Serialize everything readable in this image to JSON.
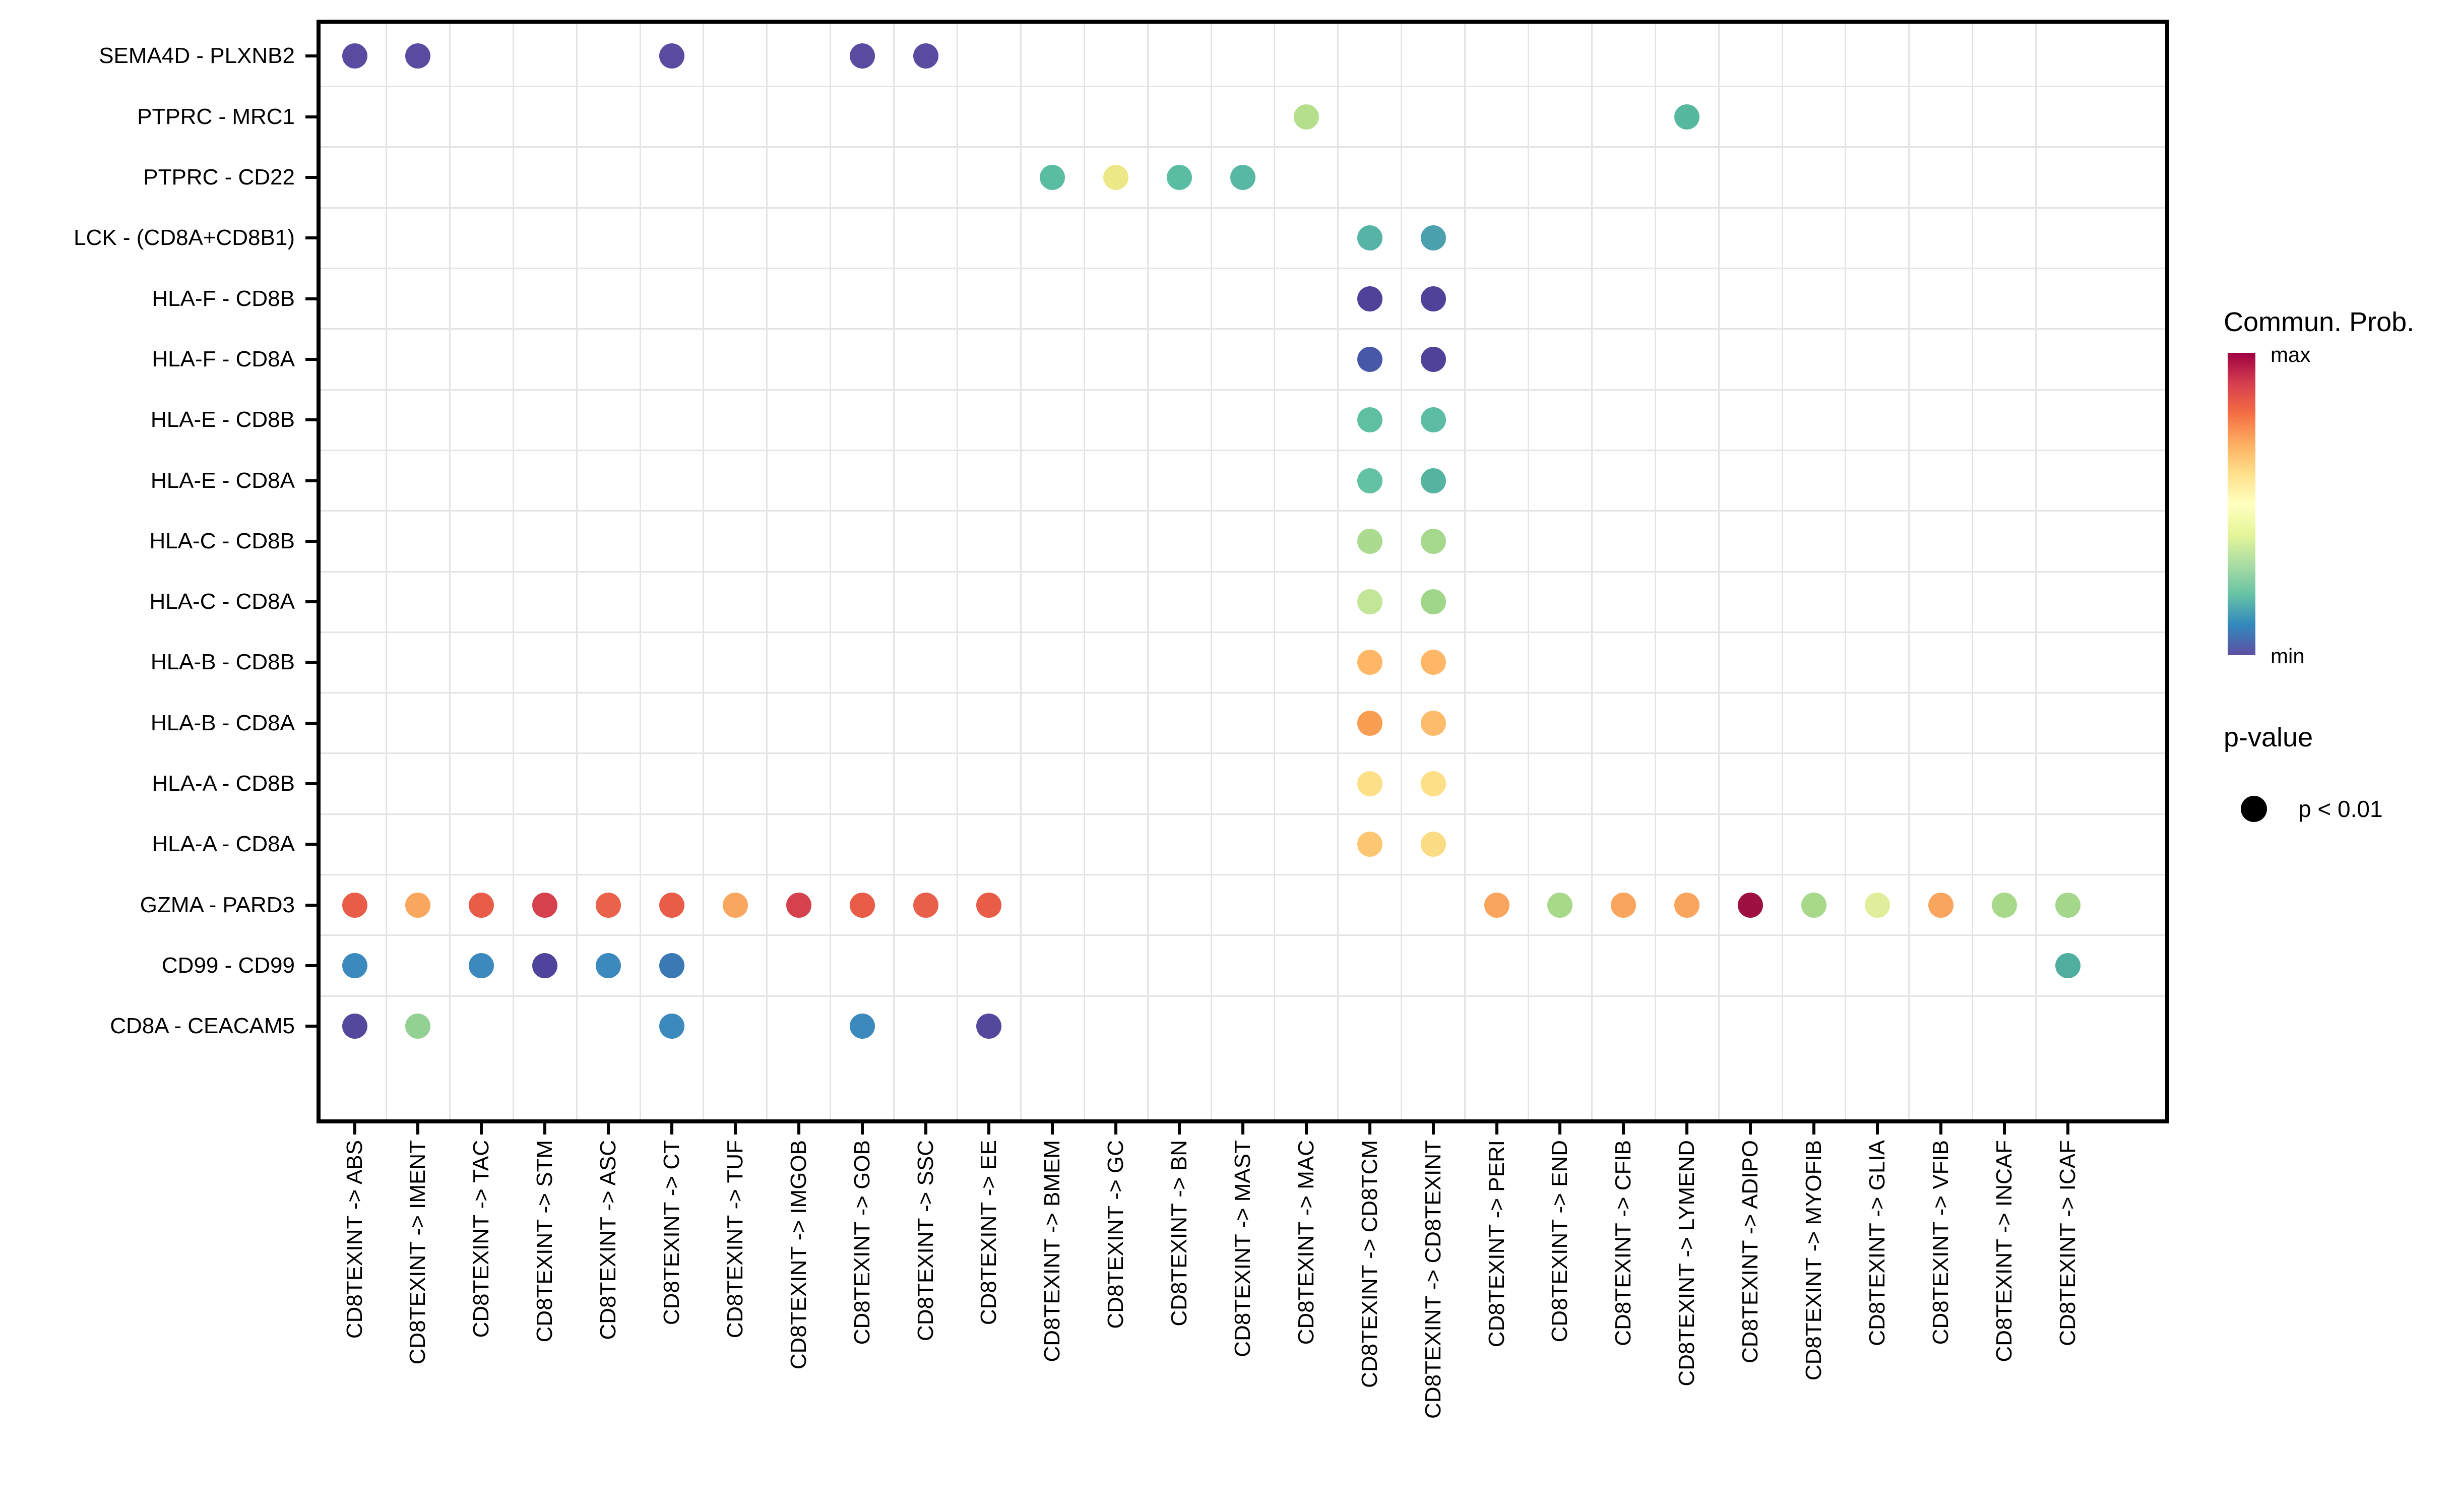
{
  "chart_data": {
    "type": "scatter",
    "description": "Ligand-receptor cell-cell communication dot plot (CellChat style). Dot color encodes communication probability (Spectral palette, min=purple-blue to max=dark red); all dots shown have p < 0.01.",
    "x_categories": [
      "CD8TEXINT -> ABS",
      "CD8TEXINT -> IMENT",
      "CD8TEXINT -> TAC",
      "CD8TEXINT -> STM",
      "CD8TEXINT -> ASC",
      "CD8TEXINT -> CT",
      "CD8TEXINT -> TUF",
      "CD8TEXINT -> IMGOB",
      "CD8TEXINT -> GOB",
      "CD8TEXINT -> SSC",
      "CD8TEXINT -> EE",
      "CD8TEXINT -> BMEM",
      "CD8TEXINT -> GC",
      "CD8TEXINT -> BN",
      "CD8TEXINT -> MAST",
      "CD8TEXINT -> MAC",
      "CD8TEXINT -> CD8TCM",
      "CD8TEXINT -> CD8TEXINT",
      "CD8TEXINT -> PERI",
      "CD8TEXINT -> END",
      "CD8TEXINT -> CFIB",
      "CD8TEXINT -> LYMEND",
      "CD8TEXINT -> ADIPO",
      "CD8TEXINT -> MYOFIB",
      "CD8TEXINT -> GLIA",
      "CD8TEXINT -> VFIB",
      "CD8TEXINT -> INCAF",
      "CD8TEXINT -> ICAF"
    ],
    "y_categories": [
      "SEMA4D - PLXNB2",
      "PTPRC - MRC1",
      "PTPRC - CD22",
      "LCK - (CD8A+CD8B1)",
      "HLA-F - CD8B",
      "HLA-F - CD8A",
      "HLA-E - CD8B",
      "HLA-E - CD8A",
      "HLA-C - CD8B",
      "HLA-C - CD8A",
      "HLA-B - CD8B",
      "HLA-B - CD8A",
      "HLA-A - CD8B",
      "HLA-A - CD8A",
      "GZMA - PARD3",
      "CD99 - CD99",
      "CD8A - CEACAM5"
    ],
    "points": [
      {
        "row": 0,
        "col": 0,
        "color": "#5a4aa0"
      },
      {
        "row": 0,
        "col": 1,
        "color": "#5a4aa0"
      },
      {
        "row": 0,
        "col": 5,
        "color": "#5a4aa0"
      },
      {
        "row": 0,
        "col": 8,
        "color": "#5a4aa0"
      },
      {
        "row": 0,
        "col": 9,
        "color": "#5a4aa0"
      },
      {
        "row": 1,
        "col": 15,
        "color": "#b5de8d"
      },
      {
        "row": 1,
        "col": 21,
        "color": "#56b89f"
      },
      {
        "row": 2,
        "col": 11,
        "color": "#5abda1"
      },
      {
        "row": 2,
        "col": 12,
        "color": "#ece887"
      },
      {
        "row": 2,
        "col": 13,
        "color": "#5abda1"
      },
      {
        "row": 2,
        "col": 14,
        "color": "#57b9a3"
      },
      {
        "row": 3,
        "col": 16,
        "color": "#55b4a6"
      },
      {
        "row": 3,
        "col": 17,
        "color": "#4aa0ad"
      },
      {
        "row": 4,
        "col": 16,
        "color": "#4f4298"
      },
      {
        "row": 4,
        "col": 17,
        "color": "#4f4298"
      },
      {
        "row": 5,
        "col": 16,
        "color": "#4858a8"
      },
      {
        "row": 5,
        "col": 17,
        "color": "#4f4298"
      },
      {
        "row": 6,
        "col": 16,
        "color": "#5fbfa2"
      },
      {
        "row": 6,
        "col": 17,
        "color": "#5dbda4"
      },
      {
        "row": 7,
        "col": 16,
        "color": "#63c1a4"
      },
      {
        "row": 7,
        "col": 17,
        "color": "#54b4a0"
      },
      {
        "row": 8,
        "col": 16,
        "color": "#aadb8e"
      },
      {
        "row": 8,
        "col": 17,
        "color": "#a5d88c"
      },
      {
        "row": 9,
        "col": 16,
        "color": "#c2e597"
      },
      {
        "row": 9,
        "col": 17,
        "color": "#a0d68a"
      },
      {
        "row": 10,
        "col": 16,
        "color": "#fdb767"
      },
      {
        "row": 10,
        "col": 17,
        "color": "#fdb767"
      },
      {
        "row": 11,
        "col": 16,
        "color": "#f99d53"
      },
      {
        "row": 11,
        "col": 17,
        "color": "#fdbb6c"
      },
      {
        "row": 12,
        "col": 16,
        "color": "#fcdf87"
      },
      {
        "row": 12,
        "col": 17,
        "color": "#fcdf87"
      },
      {
        "row": 13,
        "col": 16,
        "color": "#fdc672"
      },
      {
        "row": 13,
        "col": 17,
        "color": "#fbdc84"
      },
      {
        "row": 14,
        "col": 0,
        "color": "#e85c48"
      },
      {
        "row": 14,
        "col": 1,
        "color": "#f9a75e"
      },
      {
        "row": 14,
        "col": 2,
        "color": "#e85c48"
      },
      {
        "row": 14,
        "col": 3,
        "color": "#d6414e"
      },
      {
        "row": 14,
        "col": 4,
        "color": "#ea6249"
      },
      {
        "row": 14,
        "col": 5,
        "color": "#e85c48"
      },
      {
        "row": 14,
        "col": 6,
        "color": "#f9a75e"
      },
      {
        "row": 14,
        "col": 7,
        "color": "#d6414e"
      },
      {
        "row": 14,
        "col": 8,
        "color": "#e85c48"
      },
      {
        "row": 14,
        "col": 9,
        "color": "#e9604a"
      },
      {
        "row": 14,
        "col": 10,
        "color": "#e85c48"
      },
      {
        "row": 14,
        "col": 18,
        "color": "#f9a55d"
      },
      {
        "row": 14,
        "col": 19,
        "color": "#a8d98a"
      },
      {
        "row": 14,
        "col": 20,
        "color": "#f9a55d"
      },
      {
        "row": 14,
        "col": 21,
        "color": "#f9a55d"
      },
      {
        "row": 14,
        "col": 22,
        "color": "#9e0f42"
      },
      {
        "row": 14,
        "col": 23,
        "color": "#a8d98a"
      },
      {
        "row": 14,
        "col": 24,
        "color": "#e0ed9a"
      },
      {
        "row": 14,
        "col": 25,
        "color": "#f9a55d"
      },
      {
        "row": 14,
        "col": 26,
        "color": "#a8d98a"
      },
      {
        "row": 14,
        "col": 27,
        "color": "#a4d78b"
      },
      {
        "row": 15,
        "col": 0,
        "color": "#3c8abd"
      },
      {
        "row": 15,
        "col": 2,
        "color": "#3c8abd"
      },
      {
        "row": 15,
        "col": 3,
        "color": "#4f449b"
      },
      {
        "row": 15,
        "col": 4,
        "color": "#3c8abd"
      },
      {
        "row": 15,
        "col": 5,
        "color": "#3a79b4"
      },
      {
        "row": 15,
        "col": 27,
        "color": "#4fae9e"
      },
      {
        "row": 16,
        "col": 0,
        "color": "#54489c"
      },
      {
        "row": 16,
        "col": 1,
        "color": "#93d093"
      },
      {
        "row": 16,
        "col": 5,
        "color": "#3c8abd"
      },
      {
        "row": 16,
        "col": 8,
        "color": "#3c8abd"
      },
      {
        "row": 16,
        "col": 10,
        "color": "#54489c"
      }
    ],
    "legend_position": "right",
    "grid": true
  },
  "legend": {
    "colorbar_title": "Commun. Prob.",
    "colorbar_max_label": "max",
    "colorbar_min_label": "min",
    "colorbar_colors_bottom_to_top": [
      "#5e4fa2",
      "#3288bd",
      "#66c2a5",
      "#abdda4",
      "#e6f598",
      "#ffffbf",
      "#fee08b",
      "#fdae61",
      "#f46d43",
      "#d53e4f",
      "#9e0142"
    ],
    "pvalue_title": "p-value",
    "pvalue_item_label": "p < 0.01",
    "pvalue_dot_color": "#000000"
  }
}
